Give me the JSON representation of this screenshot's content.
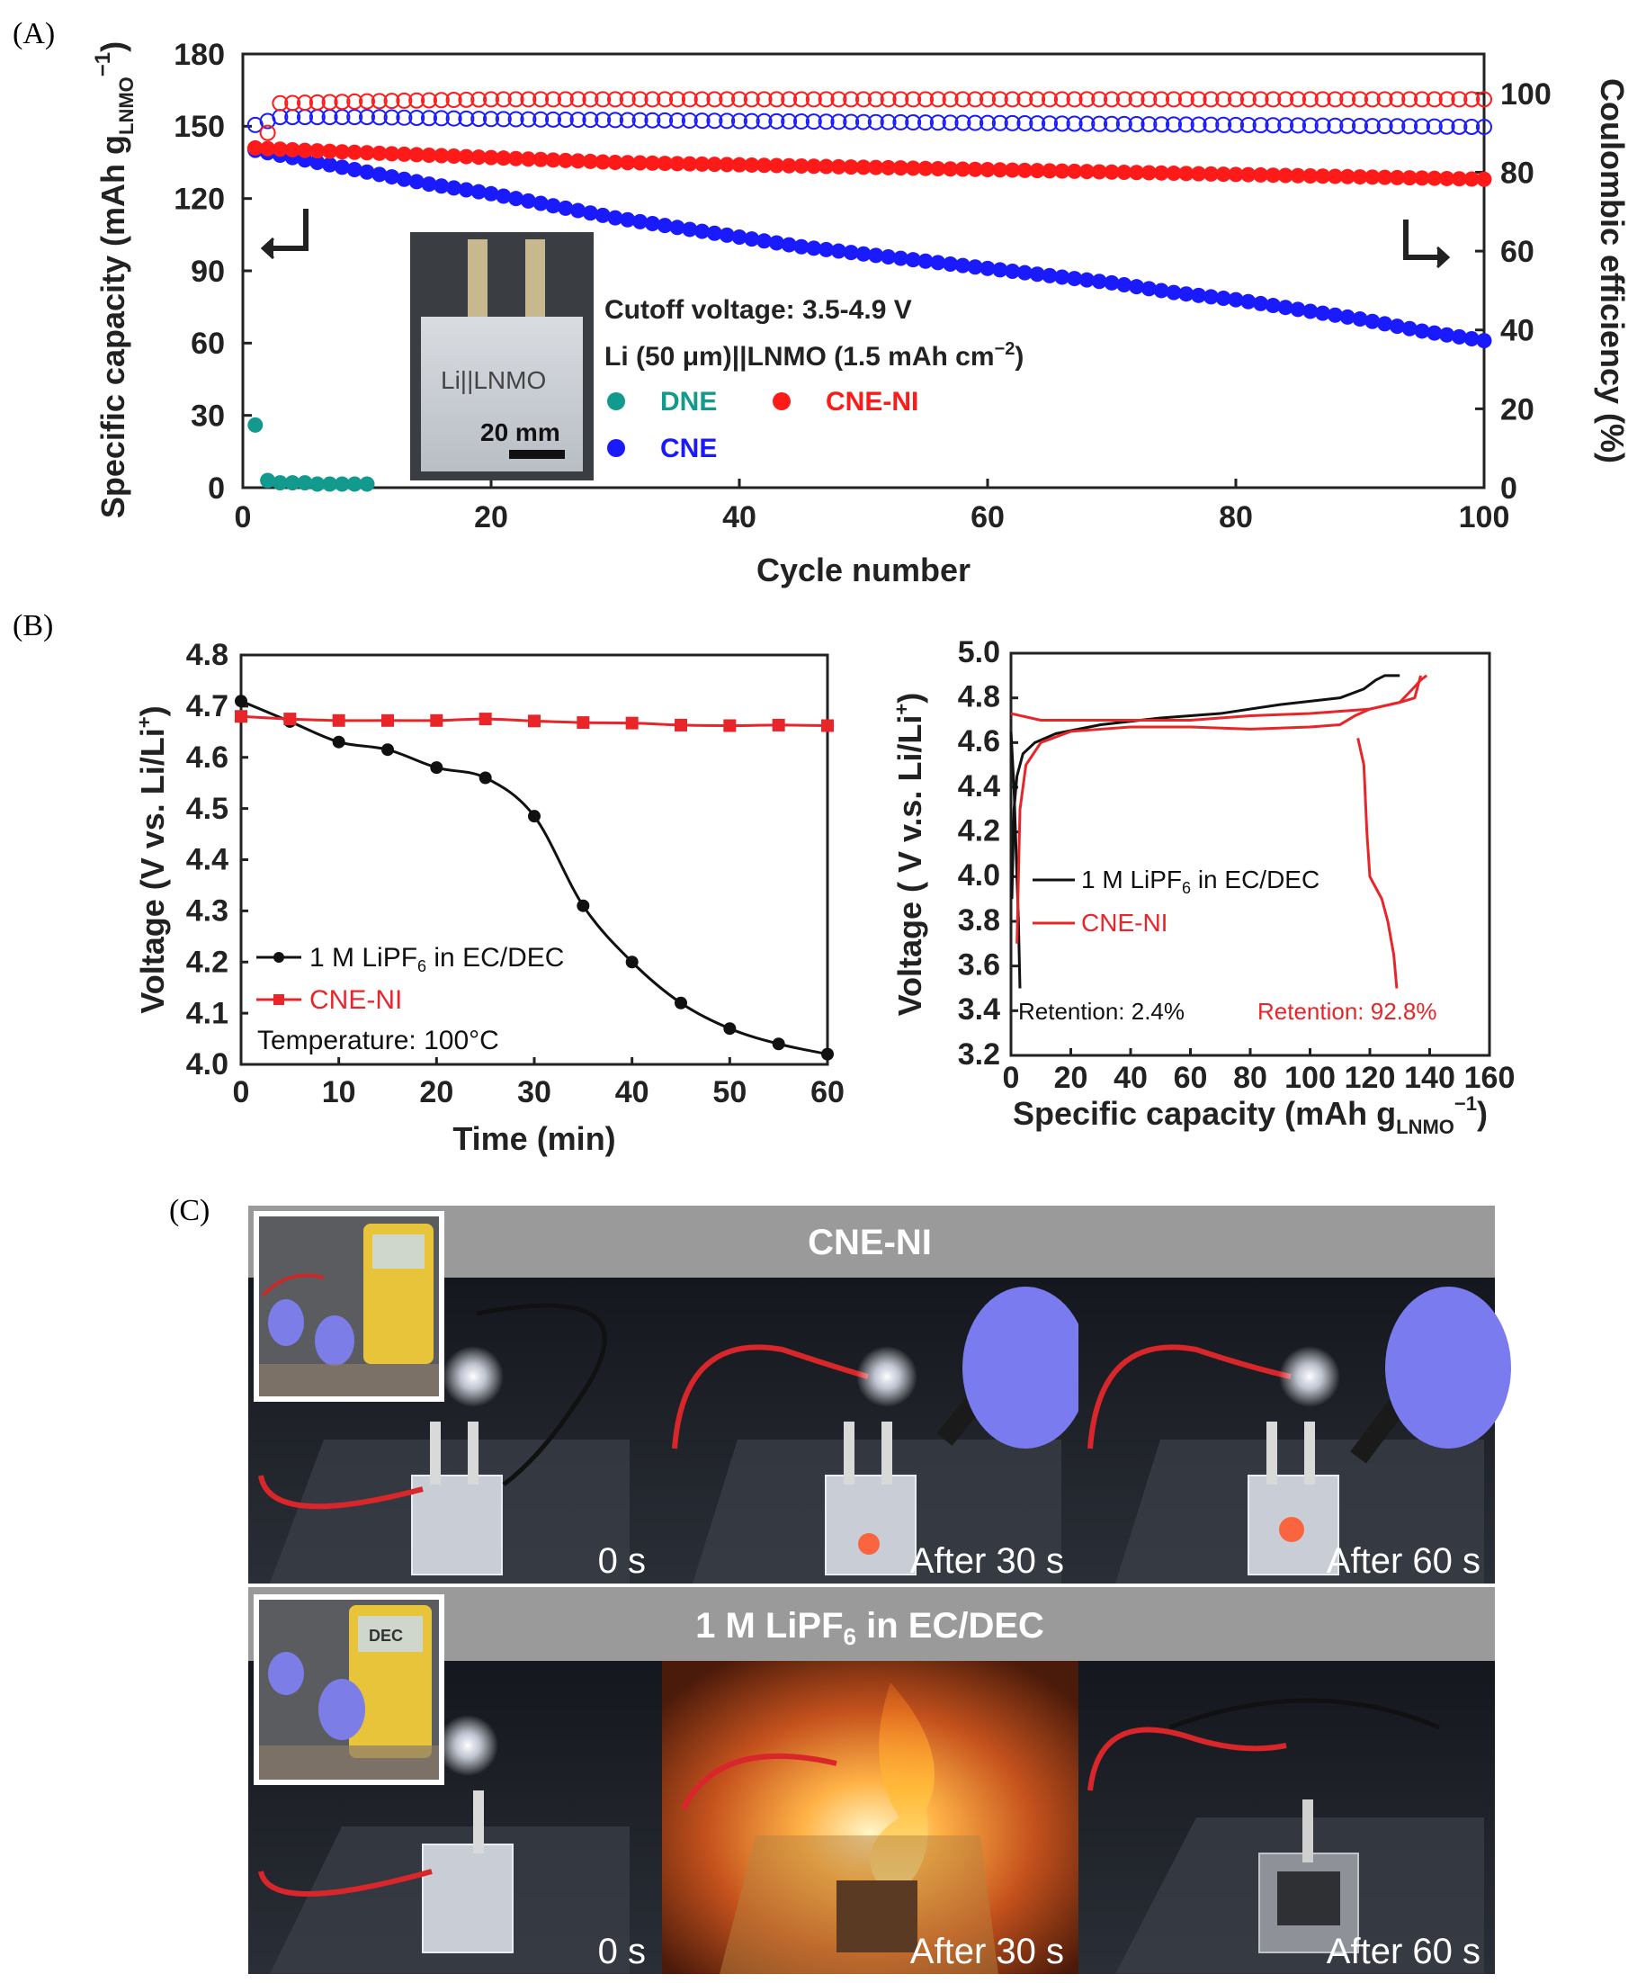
{
  "panels": {
    "a": "(A)",
    "b": "(B)",
    "c": "(C)"
  },
  "colors": {
    "dne": "#139a8e",
    "cne": "#1a1aff",
    "cne_ni": "#ff1a1a",
    "black": "#111111",
    "red_line": "#e8262a",
    "photo_banner": "#9a9a9a"
  },
  "chart_data": [
    {
      "type": "scatter",
      "xlabel": "Cycle number",
      "ylabel": "Specific capacity (mAh gLNMO−1)",
      "ylabel_main": "Specific capacity (mAh g",
      "ylabel_sub": "LNMO",
      "ylabel_sup": "−1",
      "y2label": "Coulombic efficiency (%)",
      "xlim": [
        0,
        100
      ],
      "ylim": [
        0,
        180
      ],
      "y2lim": [
        0,
        110
      ],
      "xticks": [
        "0",
        "20",
        "40",
        "60",
        "80",
        "100"
      ],
      "yticks": [
        "0",
        "30",
        "60",
        "90",
        "120",
        "150",
        "180"
      ],
      "y2ticks": [
        "0",
        "20",
        "40",
        "60",
        "80",
        "100"
      ],
      "annotations": {
        "line1": "Cutoff voltage: 3.5-4.9 V",
        "line2_pre": "Li (50 μm)||LNMO (1.5 mAh cm",
        "line2_sup": "−2",
        "line2_post": ")",
        "inset_label": "Li||LNMO",
        "scale_bar": "20 mm"
      },
      "legend": [
        "DNE",
        "CNE",
        "CNE-NI"
      ],
      "series": [
        {
          "name": "DNE",
          "axis": "capacity",
          "x": [
            1,
            2,
            3,
            4,
            5,
            6,
            7,
            8,
            9,
            10
          ],
          "y": [
            26,
            3,
            2,
            2,
            2,
            1.5,
            1.5,
            1.5,
            1.5,
            1.5
          ]
        },
        {
          "name": "CNE",
          "axis": "capacity",
          "x": [
            1,
            5,
            10,
            15,
            20,
            25,
            30,
            35,
            40,
            45,
            50,
            55,
            60,
            65,
            70,
            75,
            80,
            85,
            90,
            95,
            100
          ],
          "y": [
            140,
            136,
            131,
            126,
            122,
            117,
            112,
            108,
            104,
            100,
            97,
            94,
            91,
            88,
            85,
            81,
            78,
            74,
            70,
            65,
            61
          ]
        },
        {
          "name": "CNE-NI",
          "axis": "capacity",
          "x": [
            1,
            5,
            10,
            20,
            30,
            40,
            50,
            60,
            70,
            80,
            90,
            100
          ],
          "y": [
            141,
            140,
            139,
            137,
            135,
            134,
            133,
            132,
            131,
            130,
            129,
            128
          ]
        },
        {
          "name": "CNE CE",
          "axis": "efficiency",
          "x": [
            1,
            3,
            10,
            20,
            40,
            60,
            80,
            100
          ],
          "y": [
            92,
            94,
            94,
            93.5,
            93,
            92.5,
            92,
            91.5
          ]
        },
        {
          "name": "CNE-NI CE",
          "axis": "efficiency",
          "x": [
            1,
            2,
            3,
            10,
            20,
            40,
            60,
            80,
            100
          ],
          "y": [
            86,
            90,
            97.5,
            98,
            98.5,
            98.5,
            98.5,
            98.5,
            98.5
          ]
        }
      ]
    },
    {
      "type": "line",
      "xlabel": "Time (min)",
      "ylabel": "Voltage (V vs. Li/Li+)",
      "ylabel_main": "Voltage (V vs. Li/Li",
      "ylabel_sup": "+",
      "ylabel_post": ")",
      "xlim": [
        0,
        60
      ],
      "ylim": [
        4.0,
        4.8
      ],
      "xticks": [
        "0",
        "10",
        "20",
        "30",
        "40",
        "50",
        "60"
      ],
      "yticks": [
        "4.0",
        "4.1",
        "4.2",
        "4.3",
        "4.4",
        "4.5",
        "4.6",
        "4.7",
        "4.8"
      ],
      "legend": {
        "s1_pre": "1 M LiPF",
        "s1_sub": "6",
        "s1_post": " in EC/DEC",
        "s2": "CNE-NI",
        "temp": "Temperature: 100°C"
      },
      "series": [
        {
          "name": "1 M LiPF6 in EC/DEC",
          "x": [
            0,
            5,
            10,
            15,
            20,
            25,
            30,
            35,
            40,
            45,
            50,
            55,
            60
          ],
          "y": [
            4.71,
            4.67,
            4.63,
            4.615,
            4.58,
            4.56,
            4.485,
            4.31,
            4.2,
            4.12,
            4.07,
            4.04,
            4.02
          ]
        },
        {
          "name": "CNE-NI",
          "x": [
            0,
            5,
            10,
            15,
            20,
            25,
            30,
            35,
            40,
            45,
            50,
            55,
            60
          ],
          "y": [
            4.68,
            4.675,
            4.672,
            4.672,
            4.672,
            4.675,
            4.671,
            4.668,
            4.667,
            4.663,
            4.662,
            4.663,
            4.662
          ]
        }
      ]
    },
    {
      "type": "line",
      "xlabel": "Specific capacity (mAh gLNMO−1)",
      "xlabel_main": "Specific capacity (mAh g",
      "xlabel_sub": "LNMO",
      "xlabel_sup": "−1",
      "xlabel_post": ")",
      "ylabel": "Voltage ( V v.s. Li/Li+)",
      "ylabel_main": "Voltage ( V v.s. Li/Li",
      "ylabel_sup": "+",
      "ylabel_post": ")",
      "xlim": [
        0,
        160
      ],
      "ylim": [
        3.2,
        5.0
      ],
      "xticks": [
        "0",
        "20",
        "40",
        "60",
        "80",
        "100",
        "120",
        "140",
        "160"
      ],
      "yticks": [
        "3.2",
        "3.4",
        "3.6",
        "3.8",
        "4.0",
        "4.2",
        "4.4",
        "4.6",
        "4.8",
        "5.0"
      ],
      "legend": {
        "s1_pre": "1 M LiPF",
        "s1_sub": "6",
        "s1_post": " in EC/DEC",
        "s2": "CNE-NI"
      },
      "retention": {
        "liquid": "Retention: 2.4%",
        "cne_ni": "Retention: 92.8%"
      },
      "series": [
        {
          "name": "1 M LiPF6 in EC/DEC charge",
          "x": [
            0.3,
            1,
            2,
            4,
            8,
            15,
            30,
            50,
            70,
            90,
            110,
            118,
            122,
            125,
            130
          ],
          "y": [
            3.9,
            4.3,
            4.45,
            4.55,
            4.6,
            4.64,
            4.68,
            4.71,
            4.73,
            4.77,
            4.8,
            4.84,
            4.88,
            4.9,
            4.9
          ]
        },
        {
          "name": "1 M LiPF6 in EC/DEC discharge",
          "x": [
            0,
            1,
            1.5,
            2,
            2.5,
            3
          ],
          "y": [
            4.65,
            4.4,
            4.2,
            4.0,
            3.8,
            3.5
          ]
        },
        {
          "name": "CNE-NI charge",
          "x": [
            0,
            10,
            20,
            30,
            40,
            60,
            80,
            100,
            120,
            130,
            135,
            137,
            139
          ],
          "y": [
            4.73,
            4.7,
            4.7,
            4.7,
            4.7,
            4.7,
            4.72,
            4.73,
            4.75,
            4.78,
            4.85,
            4.88,
            4.9
          ]
        },
        {
          "name": "CNE-NI discharge",
          "x": [
            137,
            135,
            130,
            120,
            115,
            110,
            100,
            80,
            60,
            40,
            30,
            20,
            10,
            5,
            3,
            2
          ],
          "y": [
            4.9,
            4.8,
            4.78,
            4.75,
            4.72,
            4.68,
            4.67,
            4.66,
            4.67,
            4.67,
            4.66,
            4.65,
            4.6,
            4.5,
            4.3,
            3.7
          ]
        },
        {
          "name": "CNE-NI discharge tail",
          "x": [
            116,
            118,
            119,
            120,
            122,
            124,
            126,
            128,
            129
          ],
          "y": [
            4.62,
            4.5,
            4.2,
            4.0,
            3.95,
            3.9,
            3.8,
            3.65,
            3.5
          ]
        }
      ]
    }
  ],
  "photos": {
    "row1_title": "CNE-NI",
    "row2_title_pre": "1 M LiPF",
    "row2_title_sub": "6",
    "row2_title_post": " in EC/DEC",
    "times": [
      "0 s",
      "After 30 s",
      "After 60 s"
    ],
    "meter_text": "DEC"
  }
}
